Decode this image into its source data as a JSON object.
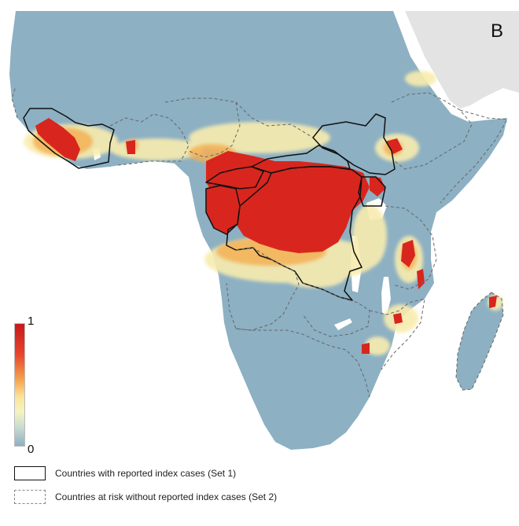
{
  "panel_label": "B",
  "scale": {
    "max_label": "1",
    "min_label": "0",
    "colors": [
      "#c8181c",
      "#e8452a",
      "#f5a04a",
      "#fbe49a",
      "#f4f4c0",
      "#c9dbd0",
      "#8db0c3"
    ]
  },
  "colors": {
    "land": "#8db0c3",
    "ocean": "#ffffff",
    "other_land": "#e3e3e3",
    "high_risk": "#d8261e",
    "mid_risk": "#f4b055",
    "low_risk": "#f8ecae"
  },
  "legend": {
    "set1_label": "Countries with reported index cases (Set 1)",
    "set2_label": "Countries at risk without reported index cases (Set 2)"
  }
}
